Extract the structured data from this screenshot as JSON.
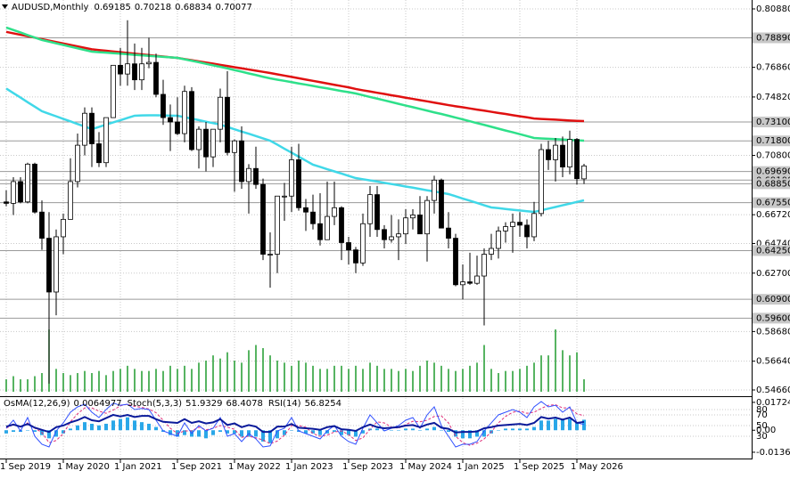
{
  "chart_data": {
    "type": "candlestick",
    "title": "AUDUSD,Monthly",
    "categories": [
      "1 Sep 2019",
      null,
      null,
      null,
      null,
      null,
      null,
      null,
      "1 May 2020",
      null,
      null,
      null,
      null,
      null,
      null,
      null,
      "1 Jan 2021",
      null,
      null,
      null,
      null,
      null,
      null,
      null,
      "1 Sep 2021",
      null,
      null,
      null,
      null,
      null,
      null,
      null,
      "1 May 2022",
      null,
      null,
      null,
      null,
      null,
      null,
      null,
      "1 Jan 2023",
      null,
      null,
      null,
      null,
      null,
      null,
      null,
      "1 Sep 2023",
      null,
      null,
      null,
      null,
      null,
      null,
      null,
      "1 May 2024",
      null,
      null,
      null,
      null,
      null,
      null,
      null,
      "1 Jan 2025",
      null,
      null,
      null,
      null,
      null,
      null,
      null,
      "1 Sep 2025",
      null,
      null,
      null,
      null,
      null,
      null,
      null,
      "1 May 2026",
      null
    ],
    "open": [
      0.676,
      0.675,
      0.69,
      0.676,
      0.702,
      0.669,
      0.651,
      0.614,
      0.652,
      0.664,
      0.69,
      0.715,
      0.737,
      0.716,
      0.703,
      0.734,
      0.77,
      0.764,
      0.771,
      0.76,
      0.771,
      0.772,
      0.75,
      0.734,
      0.731,
      0.723,
      0.752,
      0.712,
      0.726,
      0.707,
      0.726,
      0.748,
      0.71,
      0.718,
      0.69,
      0.699,
      0.688,
      0.64,
      0.64,
      0.68,
      0.68,
      0.705,
      0.672,
      0.669,
      0.661,
      0.65,
      0.666,
      0.672,
      0.648,
      0.643,
      0.634,
      0.661,
      0.681,
      0.657,
      0.65,
      0.652,
      0.654,
      0.665,
      0.667,
      0.654,
      0.677,
      0.691,
      0.658,
      0.651,
      0.619,
      0.621,
      0.62,
      0.625,
      0.64,
      0.644,
      0.656,
      0.659,
      0.662,
      0.66,
      0.652,
      0.668,
      0.712,
      0.705,
      0.715,
      0.7,
      0.719,
      0.69185
    ],
    "high": [
      0.684,
      0.693,
      0.693,
      0.703,
      0.703,
      0.677,
      0.669,
      0.657,
      0.668,
      0.706,
      0.723,
      0.741,
      0.741,
      0.724,
      0.734,
      0.77,
      0.782,
      0.801,
      0.785,
      0.782,
      0.789,
      0.778,
      0.76,
      0.743,
      0.748,
      0.756,
      0.755,
      0.728,
      0.731,
      0.725,
      0.754,
      0.766,
      0.719,
      0.728,
      0.702,
      0.714,
      0.692,
      0.655,
      0.68,
      0.689,
      0.714,
      0.716,
      0.678,
      0.681,
      0.682,
      0.69,
      0.69,
      0.673,
      0.652,
      0.645,
      0.668,
      0.687,
      0.687,
      0.66,
      0.667,
      0.664,
      0.671,
      0.671,
      0.68,
      0.68,
      0.694,
      0.692,
      0.669,
      0.654,
      0.633,
      0.641,
      0.639,
      0.644,
      0.654,
      0.659,
      0.662,
      0.668,
      0.669,
      0.664,
      0.676,
      0.716,
      0.718,
      0.72,
      0.721,
      0.725,
      0.72,
      0.70218
    ],
    "low": [
      0.673,
      0.667,
      0.675,
      0.675,
      0.668,
      0.643,
      0.551,
      0.598,
      0.64,
      0.664,
      0.686,
      0.708,
      0.7,
      0.7,
      0.7,
      0.734,
      0.756,
      0.756,
      0.753,
      0.753,
      0.768,
      0.748,
      0.729,
      0.711,
      0.722,
      0.717,
      0.711,
      0.699,
      0.697,
      0.7,
      0.717,
      0.708,
      0.683,
      0.685,
      0.668,
      0.685,
      0.636,
      0.617,
      0.627,
      0.663,
      0.669,
      0.67,
      0.656,
      0.657,
      0.646,
      0.65,
      0.66,
      0.636,
      0.633,
      0.627,
      0.632,
      0.652,
      0.652,
      0.644,
      0.648,
      0.636,
      0.647,
      0.657,
      0.654,
      0.635,
      0.668,
      0.658,
      0.644,
      0.618,
      0.609,
      0.619,
      0.619,
      0.591,
      0.636,
      0.637,
      0.648,
      0.641,
      0.652,
      0.644,
      0.649,
      0.666,
      0.698,
      0.69,
      0.693,
      0.695,
      0.688,
      0.68834
    ],
    "close": [
      0.675,
      0.69,
      0.676,
      0.702,
      0.669,
      0.651,
      0.614,
      0.652,
      0.664,
      0.69,
      0.715,
      0.737,
      0.716,
      0.703,
      0.734,
      0.77,
      0.764,
      0.771,
      0.76,
      0.771,
      0.772,
      0.75,
      0.734,
      0.731,
      0.723,
      0.752,
      0.712,
      0.726,
      0.707,
      0.726,
      0.748,
      0.71,
      0.718,
      0.69,
      0.699,
      0.688,
      0.64,
      0.64,
      0.68,
      0.68,
      0.705,
      0.672,
      0.669,
      0.661,
      0.65,
      0.666,
      0.672,
      0.648,
      0.643,
      0.634,
      0.661,
      0.681,
      0.657,
      0.65,
      0.652,
      0.654,
      0.665,
      0.667,
      0.654,
      0.677,
      0.691,
      0.658,
      0.651,
      0.619,
      0.621,
      0.62,
      0.625,
      0.64,
      0.644,
      0.656,
      0.659,
      0.662,
      0.66,
      0.652,
      0.668,
      0.712,
      0.705,
      0.715,
      0.7,
      0.719,
      0.692,
      0.70077
    ],
    "bull_color": "#ffffff",
    "bear_color": "#000000",
    "ylim": [
      0.54231,
      0.81493
    ],
    "yticks": [
      {
        "value": 0.8088,
        "label": "0.80880"
      },
      {
        "value": 0.7686,
        "label": "0.76860"
      },
      {
        "value": 0.7482,
        "label": "0.74820"
      },
      {
        "value": 0.708,
        "label": "0.70800"
      },
      {
        "value": 0.6672,
        "label": "0.66720"
      },
      {
        "value": 0.6474,
        "label": "0.64740"
      },
      {
        "value": 0.627,
        "label": "0.62700"
      },
      {
        "value": 0.5868,
        "label": "0.58680"
      },
      {
        "value": 0.5664,
        "label": "0.56640"
      },
      {
        "value": 0.5466,
        "label": "0.54660"
      }
    ],
    "levels": [
      {
        "value": 0.7889,
        "label": "0.78890"
      },
      {
        "value": 0.731,
        "label": "0.73100"
      },
      {
        "value": 0.718,
        "label": "0.71800"
      },
      {
        "value": 0.6969,
        "label": "0.69690"
      },
      {
        "value": 0.691,
        "label": "0.69100"
      },
      {
        "value": 0.6885,
        "label": "0.68850"
      },
      {
        "value": 0.6755,
        "label": "0.67550"
      },
      {
        "value": 0.6425,
        "label": "0.64250"
      },
      {
        "value": 0.609,
        "label": "0.60900"
      },
      {
        "value": 0.596,
        "label": "0.59600"
      }
    ],
    "grid": true,
    "moving_averages": [
      {
        "color": "#e01010",
        "values": [
          0.793,
          0.792,
          0.791,
          0.79,
          0.789,
          0.788,
          0.787,
          0.786,
          0.785,
          0.784,
          0.783,
          0.782,
          0.781,
          0.7805,
          0.78,
          0.7795,
          0.779,
          0.7785,
          0.778,
          0.7775,
          0.777,
          0.7765,
          0.776,
          0.7755,
          0.7751,
          0.7743,
          0.7735,
          0.7727,
          0.7719,
          0.7711,
          0.7703,
          0.7695,
          0.7687,
          0.7679,
          0.7671,
          0.7663,
          0.7655,
          0.7647,
          0.7638,
          0.7629,
          0.762,
          0.7611,
          0.7602,
          0.7593,
          0.7584,
          0.7575,
          0.7566,
          0.7557,
          0.7548,
          0.7537,
          0.7528,
          0.752,
          0.7511,
          0.7503,
          0.7494,
          0.7486,
          0.7477,
          0.7469,
          0.746,
          0.7452,
          0.7443,
          0.7435,
          0.7426,
          0.7418,
          0.7411,
          0.7403,
          0.7395,
          0.7388,
          0.738,
          0.7372,
          0.7365,
          0.7357,
          0.7349,
          0.7342,
          0.7334,
          0.7331,
          0.7328,
          0.7326,
          0.7323,
          0.732,
          0.7318,
          0.7316
        ]
      },
      {
        "color": "#2ee08a",
        "values": [
          0.796,
          0.7943,
          0.7926,
          0.7908,
          0.7891,
          0.7874,
          0.7863,
          0.7851,
          0.784,
          0.7828,
          0.7817,
          0.7805,
          0.7794,
          0.779,
          0.7787,
          0.7783,
          0.778,
          0.7776,
          0.7772,
          0.7769,
          0.7765,
          0.7762,
          0.7758,
          0.7755,
          0.7751,
          0.7741,
          0.7731,
          0.7721,
          0.771,
          0.77,
          0.769,
          0.7679,
          0.7667,
          0.7656,
          0.7644,
          0.7633,
          0.7621,
          0.761,
          0.7601,
          0.7593,
          0.7584,
          0.7575,
          0.7567,
          0.7558,
          0.7549,
          0.7541,
          0.7532,
          0.7523,
          0.7515,
          0.7506,
          0.7494,
          0.7482,
          0.7471,
          0.7459,
          0.7447,
          0.7435,
          0.7423,
          0.7412,
          0.74,
          0.7388,
          0.7376,
          0.7365,
          0.7353,
          0.734,
          0.7328,
          0.7315,
          0.7302,
          0.729,
          0.7277,
          0.7264,
          0.7251,
          0.7239,
          0.7226,
          0.7213,
          0.72,
          0.7197,
          0.7194,
          0.7192,
          0.7189,
          0.7186,
          0.7184,
          0.7181
        ]
      },
      {
        "color": "#40d8e8",
        "values": [
          0.754,
          0.7509,
          0.7478,
          0.7446,
          0.7415,
          0.7384,
          0.7366,
          0.7349,
          0.7331,
          0.7314,
          0.7296,
          0.7279,
          0.7261,
          0.7276,
          0.7292,
          0.7307,
          0.7322,
          0.7338,
          0.7353,
          0.7355,
          0.7356,
          0.7356,
          0.7355,
          0.7354,
          0.7353,
          0.7343,
          0.7333,
          0.7323,
          0.7312,
          0.7302,
          0.7292,
          0.7276,
          0.726,
          0.7244,
          0.7229,
          0.7213,
          0.7197,
          0.7181,
          0.7154,
          0.7126,
          0.7099,
          0.7071,
          0.7044,
          0.7016,
          0.7001,
          0.6985,
          0.697,
          0.6955,
          0.6939,
          0.6924,
          0.6916,
          0.6908,
          0.69,
          0.6891,
          0.6883,
          0.6875,
          0.6866,
          0.6858,
          0.6849,
          0.684,
          0.6832,
          0.6823,
          0.6814,
          0.6799,
          0.6783,
          0.6768,
          0.6753,
          0.6737,
          0.6722,
          0.6717,
          0.6711,
          0.6706,
          0.6701,
          0.6696,
          0.6691,
          0.6702,
          0.6714,
          0.6725,
          0.6737,
          0.6748,
          0.676,
          0.6771
        ]
      }
    ],
    "volume": {
      "color": "#1f9a2e",
      "values": [
        12,
        15,
        12,
        12,
        15,
        18,
        60,
        22,
        18,
        16,
        18,
        20,
        18,
        20,
        16,
        20,
        22,
        25,
        22,
        20,
        20,
        22,
        20,
        25,
        22,
        25,
        22,
        28,
        30,
        35,
        32,
        38,
        30,
        28,
        40,
        45,
        42,
        35,
        30,
        28,
        25,
        30,
        28,
        25,
        22,
        22,
        25,
        25,
        22,
        25,
        22,
        28,
        25,
        22,
        22,
        20,
        22,
        20,
        25,
        30,
        28,
        25,
        22,
        20,
        22,
        25,
        28,
        45,
        22,
        18,
        20,
        20,
        22,
        25,
        28,
        35,
        35,
        60,
        40,
        35,
        38,
        12
      ]
    },
    "indicators": {
      "ylim": [
        -0.0175,
        0.0205
      ],
      "yticks": [
        0.01724,
        {
          "value": 0,
          "label": "0.00"
        },
        -0.013615
      ],
      "osc_lim": [
        -11.7,
        103.3
      ],
      "osc_ticks": [
        80,
        70,
        50,
        30
      ],
      "osma": {
        "name": "OsMA(12,26,9)",
        "color": "#2aa7e8",
        "values": [
          -0.002,
          -0.001,
          -0.001,
          0.0,
          -0.001,
          -0.003,
          -0.005,
          -0.004,
          -0.002,
          0.001,
          0.003,
          0.005,
          0.004,
          0.003,
          0.004,
          0.006,
          0.007,
          0.008,
          0.006,
          0.005,
          0.004,
          0.002,
          -0.001,
          -0.003,
          -0.004,
          -0.003,
          -0.004,
          -0.004,
          -0.005,
          -0.003,
          -0.001,
          -0.002,
          -0.002,
          -0.004,
          -0.004,
          -0.004,
          -0.007,
          -0.008,
          -0.005,
          -0.003,
          0.0,
          -0.001,
          -0.002,
          -0.002,
          -0.003,
          -0.002,
          -0.001,
          -0.003,
          -0.003,
          -0.004,
          -0.002,
          0.001,
          0.001,
          0.0,
          0.0,
          0.0,
          0.001,
          0.001,
          0.0,
          0.001,
          0.002,
          0.0,
          -0.001,
          -0.004,
          -0.005,
          -0.005,
          -0.004,
          -0.004,
          -0.002,
          0.0,
          0.001,
          0.001,
          0.001,
          0.001,
          0.002,
          0.006,
          0.006,
          0.007,
          0.007,
          0.007,
          0.005,
          0.0064977
        ]
      },
      "stoch": {
        "name": "Stoch(5,3,3)",
        "color": "#3050ff",
        "values": [
          45,
          60,
          40,
          65,
          30,
          15,
          10,
          40,
          55,
          75,
          85,
          90,
          75,
          65,
          80,
          92,
          88,
          90,
          80,
          82,
          80,
          60,
          40,
          35,
          30,
          55,
          35,
          50,
          40,
          45,
          65,
          30,
          35,
          20,
          35,
          25,
          10,
          12,
          40,
          45,
          65,
          40,
          35,
          30,
          25,
          40,
          50,
          30,
          20,
          15,
          45,
          70,
          55,
          40,
          45,
          50,
          60,
          65,
          45,
          70,
          85,
          50,
          30,
          10,
          15,
          15,
          20,
          40,
          55,
          70,
          75,
          80,
          75,
          65,
          85,
          95,
          85,
          88,
          75,
          85,
          55,
          51.9329
        ],
        "signal": {
          "color": "#e0307a",
          "values": [
            45,
            52,
            48,
            55,
            45,
            37,
            18,
            22,
            35,
            57,
            72,
            83,
            83,
            77,
            73,
            79,
            87,
            90,
            86,
            84,
            81,
            74,
            60,
            45,
            35,
            40,
            40,
            47,
            42,
            45,
            50,
            47,
            43,
            28,
            30,
            27,
            23,
            16,
            21,
            32,
            50,
            50,
            47,
            35,
            30,
            32,
            38,
            40,
            33,
            22,
            27,
            43,
            57,
            55,
            47,
            45,
            52,
            58,
            57,
            60,
            67,
            68,
            55,
            30,
            18,
            13,
            17,
            25,
            38,
            55,
            67,
            75,
            77,
            73,
            75,
            82,
            88,
            89,
            83,
            83,
            72,
            68.4078
          ]
        }
      },
      "rsi": {
        "name": "RSI(14)",
        "color": "#0a1a9a",
        "values": [
          48,
          52,
          48,
          53,
          46,
          42,
          38,
          47,
          50,
          56,
          60,
          66,
          60,
          58,
          64,
          70,
          67,
          70,
          66,
          68,
          68,
          62,
          57,
          56,
          55,
          62,
          55,
          58,
          54,
          56,
          62,
          51,
          54,
          47,
          51,
          48,
          38,
          38,
          48,
          48,
          53,
          46,
          45,
          44,
          42,
          47,
          49,
          43,
          42,
          40,
          47,
          52,
          47,
          45,
          46,
          47,
          50,
          51,
          47,
          52,
          55,
          46,
          44,
          37,
          38,
          38,
          39,
          45,
          47,
          50,
          51,
          52,
          53,
          51,
          55,
          66,
          63,
          65,
          61,
          65,
          55,
          56.8254
        ]
      }
    }
  }
}
